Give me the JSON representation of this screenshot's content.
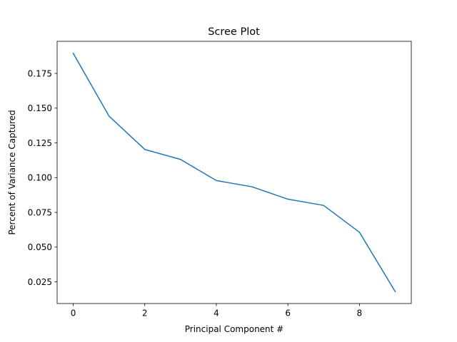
{
  "chart_data": {
    "type": "line",
    "title": "Scree Plot",
    "xlabel": "Principal Component #",
    "ylabel": "Percent of Variance Captured",
    "x": [
      0,
      1,
      2,
      3,
      4,
      5,
      6,
      7,
      8,
      9
    ],
    "series": [
      {
        "values": [
          0.1895,
          0.1443,
          0.1203,
          0.1131,
          0.0979,
          0.0934,
          0.0845,
          0.08,
          0.0607,
          0.018
        ],
        "color": "#1f77b4"
      }
    ],
    "xlim": [
      -0.45,
      9.45
    ],
    "ylim": [
      0.0094,
      0.1981
    ],
    "x_ticks": [
      {
        "value": 0,
        "label": "0"
      },
      {
        "value": 2,
        "label": "2"
      },
      {
        "value": 4,
        "label": "4"
      },
      {
        "value": 6,
        "label": "6"
      },
      {
        "value": 8,
        "label": "8"
      }
    ],
    "y_ticks": [
      {
        "value": 0.025,
        "label": "0.025"
      },
      {
        "value": 0.05,
        "label": "0.050"
      },
      {
        "value": 0.075,
        "label": "0.075"
      },
      {
        "value": 0.1,
        "label": "0.100"
      },
      {
        "value": 0.125,
        "label": "0.125"
      },
      {
        "value": 0.15,
        "label": "0.150"
      },
      {
        "value": 0.175,
        "label": "0.175"
      }
    ],
    "grid": false,
    "legend": "none"
  }
}
